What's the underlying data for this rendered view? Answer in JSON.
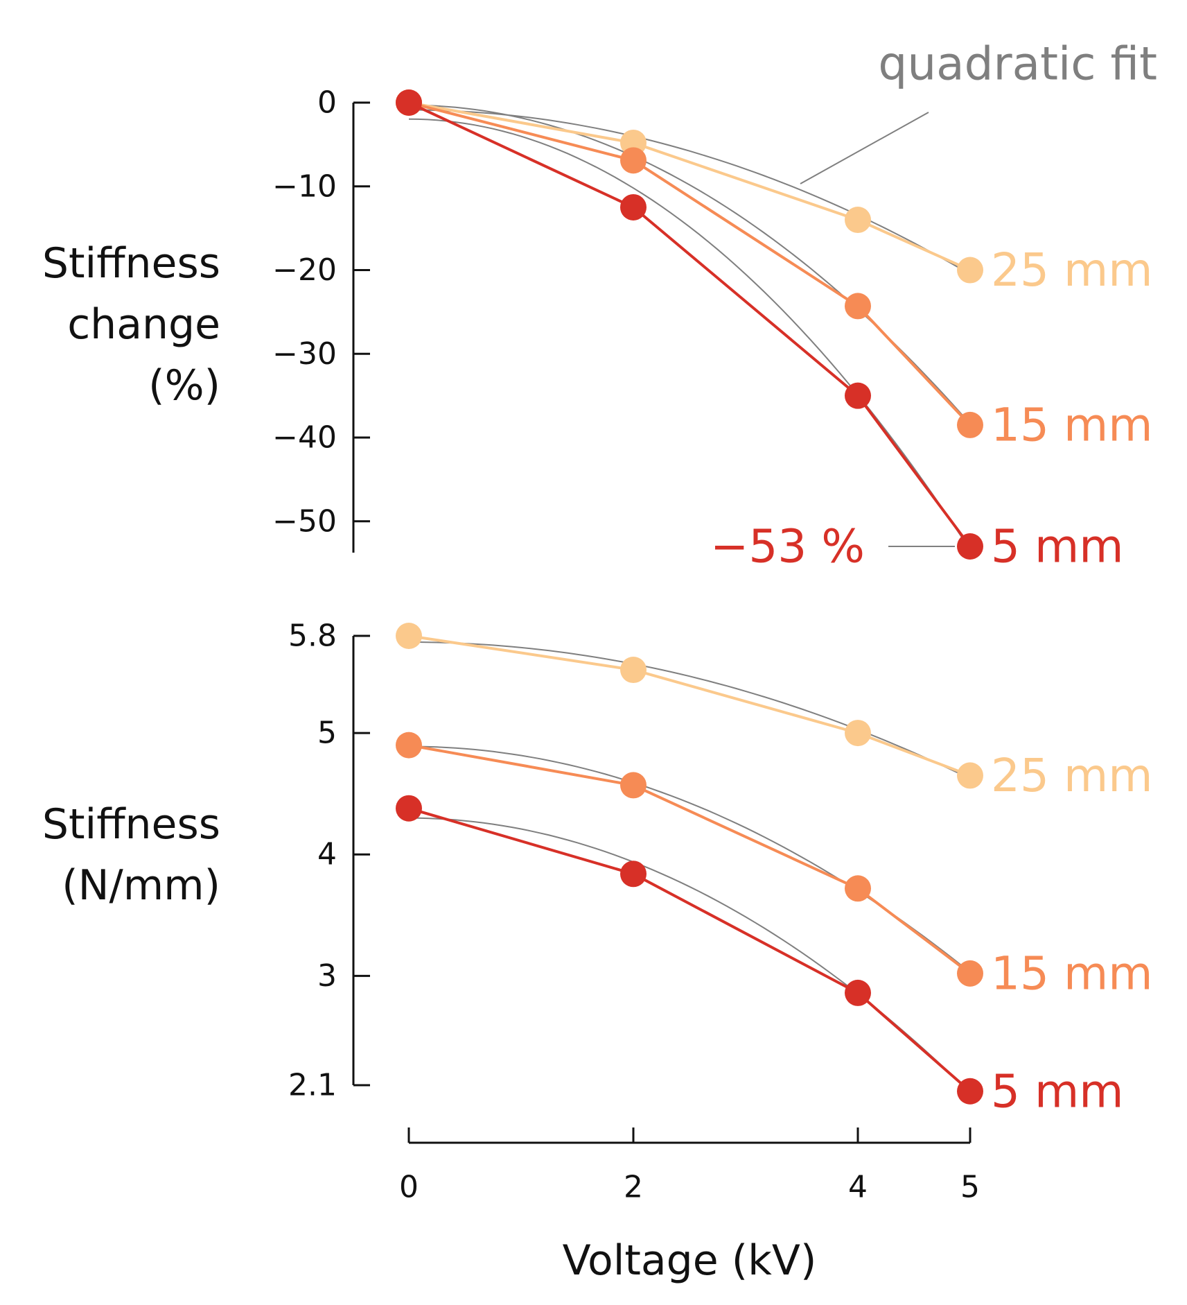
{
  "chart_data": [
    {
      "type": "line",
      "panel": "top",
      "ylabel_lines": [
        "Stiffness",
        "change",
        "(%)"
      ],
      "ylim": [
        -53,
        0
      ],
      "yticks": [
        0,
        -10,
        -20,
        -30,
        -40,
        -50
      ],
      "ytick_labels": [
        "0",
        "−10",
        "−20",
        "−30",
        "−40",
        "−50"
      ],
      "x": [
        0,
        2,
        4,
        5
      ],
      "series": [
        {
          "name": "25 mm",
          "color": "#fbc98c",
          "values": [
            0,
            -4.8,
            -14.0,
            -20.0
          ]
        },
        {
          "name": "15 mm",
          "color": "#f68b55",
          "values": [
            0,
            -6.9,
            -24.3,
            -38.5
          ]
        },
        {
          "name": "5 mm",
          "color": "#d73027",
          "values": [
            0,
            -12.5,
            -35.0,
            -53.0
          ]
        }
      ],
      "annotations": [
        {
          "text": "quadratic fit",
          "color": "#7f7f7f"
        },
        {
          "text": "−53 %",
          "color": "#d73027"
        }
      ]
    },
    {
      "type": "line",
      "panel": "bottom",
      "ylabel_lines": [
        "Stiffness",
        "(N/mm)"
      ],
      "ylim": [
        2.1,
        5.8
      ],
      "yticks": [
        5.8,
        5,
        4,
        3,
        2.1
      ],
      "ytick_labels": [
        "5.8",
        "5",
        "4",
        "3",
        "2.1"
      ],
      "x": [
        0,
        2,
        4,
        5
      ],
      "xlabel": "Voltage (kV)",
      "xticks": [
        0,
        2,
        4,
        5
      ],
      "xtick_labels": [
        "0",
        "2",
        "4",
        "5"
      ],
      "series": [
        {
          "name": "25 mm",
          "color": "#fbc98c",
          "values": [
            5.8,
            5.52,
            5.0,
            4.65
          ]
        },
        {
          "name": "15 mm",
          "color": "#f68b55",
          "values": [
            4.9,
            4.57,
            3.72,
            3.02
          ]
        },
        {
          "name": "5 mm",
          "color": "#d73027",
          "values": [
            4.38,
            3.84,
            2.86,
            2.05
          ]
        }
      ]
    }
  ]
}
